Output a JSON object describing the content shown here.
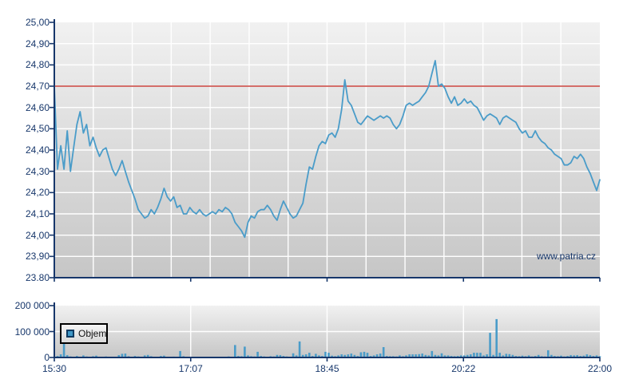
{
  "watermark": "www.patria.cz",
  "colors": {
    "price_line": "#4A9CC9",
    "threshold_line": "#C9423C",
    "axis": "#17376B",
    "label_text": "#17376B",
    "gridline": "#FFFFFF",
    "plot_bg_top": "#F1F1F1",
    "plot_bg_bottom": "#C6C6C6",
    "volume_bar": "#4A9CC9",
    "legend_swatch": "#3F97C6"
  },
  "price_chart": {
    "y_tick_labels": [
      "25,00",
      "24,90",
      "24,80",
      "24,70",
      "24,60",
      "24,50",
      "24,40",
      "24,30",
      "24,20",
      "24,10",
      "24,00",
      "23,90",
      "23.80"
    ],
    "y_min": 23.8,
    "y_max": 25.0,
    "threshold_value": 24.7,
    "minor_x_divisions": 14
  },
  "volume_chart": {
    "y_tick_labels": [
      "200 000",
      "100 000",
      "0"
    ],
    "y_min": 0,
    "y_max": 200000,
    "legend_label": "Objem",
    "major_x_divisions": 4
  },
  "x_axis": {
    "tick_labels": [
      "15:30",
      "17:07",
      "18:45",
      "20:22",
      "22:00"
    ]
  },
  "chart_data": [
    {
      "type": "line",
      "name": "price",
      "title": "",
      "xlabel": "",
      "ylabel": "",
      "x_start": "15:30",
      "x_end": "22:00",
      "x_tick_labels": [
        "15:30",
        "17:07",
        "18:45",
        "20:22",
        "22:00"
      ],
      "ylim": [
        23.8,
        25.0
      ],
      "y_tick_step": 0.1,
      "threshold_line": 24.7,
      "sampling": "170 points uniformly spaced from 15:30 to 22:00",
      "values": [
        24.7,
        24.31,
        24.42,
        24.31,
        24.49,
        24.3,
        24.41,
        24.52,
        24.58,
        24.48,
        24.52,
        24.42,
        24.46,
        24.41,
        24.37,
        24.4,
        24.41,
        24.36,
        24.31,
        24.28,
        24.31,
        24.35,
        24.3,
        24.25,
        24.21,
        24.17,
        24.12,
        24.1,
        24.08,
        24.09,
        24.12,
        24.1,
        24.13,
        24.17,
        24.22,
        24.18,
        24.16,
        24.18,
        24.13,
        24.14,
        24.1,
        24.1,
        24.13,
        24.11,
        24.1,
        24.12,
        24.1,
        24.09,
        24.1,
        24.11,
        24.1,
        24.12,
        24.11,
        24.13,
        24.12,
        24.1,
        24.06,
        24.04,
        24.02,
        23.99,
        24.06,
        24.09,
        24.08,
        24.11,
        24.12,
        24.12,
        24.14,
        24.12,
        24.09,
        24.07,
        24.12,
        24.16,
        24.13,
        24.1,
        24.08,
        24.09,
        24.12,
        24.15,
        24.24,
        24.32,
        24.31,
        24.37,
        24.42,
        24.44,
        24.43,
        24.47,
        24.48,
        24.46,
        24.5,
        24.59,
        24.73,
        24.63,
        24.61,
        24.57,
        24.53,
        24.52,
        24.54,
        24.56,
        24.55,
        24.54,
        24.55,
        24.56,
        24.55,
        24.56,
        24.55,
        24.52,
        24.5,
        24.52,
        24.56,
        24.61,
        24.62,
        24.61,
        24.62,
        24.63,
        24.65,
        24.67,
        24.7,
        24.76,
        24.82,
        24.7,
        24.71,
        24.69,
        24.65,
        24.62,
        24.65,
        24.61,
        24.62,
        24.64,
        24.62,
        24.63,
        24.61,
        24.6,
        24.57,
        24.54,
        24.56,
        24.57,
        24.56,
        24.55,
        24.52,
        24.55,
        24.56,
        24.55,
        24.54,
        24.53,
        24.5,
        24.48,
        24.49,
        24.46,
        24.46,
        24.49,
        24.46,
        24.44,
        24.43,
        24.41,
        24.4,
        24.38,
        24.37,
        24.36,
        24.33,
        24.33,
        24.34,
        24.37,
        24.36,
        24.38,
        24.36,
        24.32,
        24.29,
        24.25,
        24.21,
        24.26
      ]
    },
    {
      "type": "bar",
      "name": "Objem",
      "legend": "Objem",
      "ylim": [
        0,
        200000
      ],
      "y_tick_labels": [
        "200 000",
        "100 000",
        "0"
      ],
      "sampling": "170 bars uniformly spaced from 15:30 to 22:00",
      "values": [
        2000,
        6000,
        12000,
        108000,
        9000,
        4000,
        3000,
        6000,
        3000,
        8000,
        4000,
        2500,
        5000,
        7000,
        3000,
        2000,
        4000,
        2500,
        3000,
        2000,
        9000,
        14000,
        15000,
        5000,
        3000,
        6000,
        4000,
        2000,
        8000,
        10000,
        5000,
        3000,
        2000,
        6000,
        7000,
        3000,
        2000,
        3500,
        2000,
        25000,
        5000,
        2000,
        1500,
        2000,
        1000,
        1500,
        2000,
        1000,
        1500,
        2500,
        2000,
        1500,
        3000,
        2000,
        4000,
        3000,
        48000,
        6000,
        5000,
        42000,
        8000,
        5000,
        4000,
        22000,
        6000,
        4000,
        3000,
        5000,
        4000,
        10000,
        9000,
        6000,
        4000,
        3000,
        16000,
        8000,
        62000,
        10000,
        12000,
        18000,
        6000,
        14000,
        8000,
        6000,
        22000,
        18000,
        7000,
        5000,
        8000,
        12000,
        10000,
        12000,
        15000,
        10000,
        6000,
        20000,
        22000,
        18000,
        6000,
        8000,
        12000,
        15000,
        40000,
        6000,
        5000,
        5000,
        4000,
        8000,
        5000,
        8000,
        12000,
        12000,
        12000,
        13000,
        15000,
        10000,
        8000,
        25000,
        10000,
        8000,
        16000,
        8000,
        8000,
        6000,
        5000,
        6000,
        8000,
        8000,
        10000,
        12000,
        18000,
        18000,
        18000,
        8000,
        12000,
        95000,
        10000,
        148000,
        18000,
        8000,
        14000,
        13000,
        10000,
        6000,
        5000,
        7000,
        5000,
        8000,
        4000,
        6000,
        10000,
        5000,
        4000,
        28000,
        10000,
        6000,
        5000,
        7000,
        4000,
        6000,
        9000,
        8000,
        9000,
        6000,
        7000,
        12000,
        9000,
        6000,
        8000,
        5000
      ]
    }
  ]
}
